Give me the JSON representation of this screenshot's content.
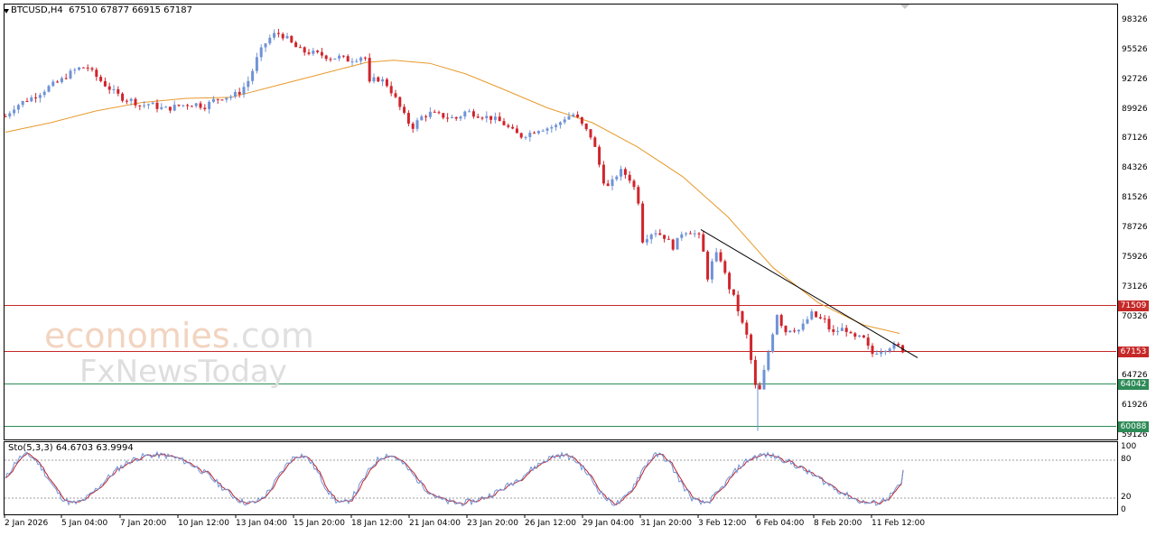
{
  "window": {
    "header": "BTCUSD,H4  67510 67877 66915 67187",
    "oscillator_header": "Sto(5,3,3) 64.6703 63.9994"
  },
  "watermark": {
    "line1_main": "economies",
    "line1_suffix": ".com",
    "line2": "FxNewsToday"
  },
  "colors": {
    "bull_candle": "#6f93d6",
    "bear_candle": "#d0242c",
    "moving_average": "#e89a2c",
    "red_level": "#c62828",
    "green_level": "#2e8b57",
    "trendline": "#000000",
    "stoch_main": "#6f93d6",
    "stoch_signal": "#c0222a"
  },
  "chart_data": [
    {
      "type": "candlestick",
      "title": "BTCUSD,H4",
      "timeframe": "H4",
      "last_bar": {
        "open": 67510,
        "high": 67877,
        "low": 66915,
        "close": 67187
      },
      "ylim": [
        58500,
        99000
      ],
      "y_ticks": [
        98326,
        95526,
        92726,
        89926,
        87126,
        84326,
        81526,
        78726,
        75926,
        73126,
        70326,
        64726,
        61926,
        59126
      ],
      "x_ticks": [
        "2 Jan 2026",
        "5 Jan 04:00",
        "7 Jan 20:00",
        "10 Jan 12:00",
        "13 Jan 04:00",
        "15 Jan 20:00",
        "18 Jan 12:00",
        "21 Jan 04:00",
        "23 Jan 20:00",
        "26 Jan 12:00",
        "29 Jan 04:00",
        "31 Jan 20:00",
        "3 Feb 12:00",
        "6 Feb 04:00",
        "8 Feb 20:00",
        "11 Feb 12:00"
      ],
      "closes_approx": [
        [
          0,
          89300
        ],
        [
          10,
          90200
        ],
        [
          20,
          90700
        ],
        [
          30,
          91100
        ],
        [
          40,
          91600
        ],
        [
          50,
          92200
        ],
        [
          60,
          92600
        ],
        [
          70,
          93300
        ],
        [
          80,
          93800
        ],
        [
          90,
          94000
        ],
        [
          100,
          93100
        ],
        [
          110,
          92300
        ],
        [
          120,
          91600
        ],
        [
          130,
          91000
        ],
        [
          140,
          90800
        ],
        [
          150,
          90300
        ],
        [
          160,
          90500
        ],
        [
          170,
          90100
        ],
        [
          180,
          90000
        ],
        [
          190,
          90300
        ],
        [
          200,
          90400
        ],
        [
          210,
          90500
        ],
        [
          220,
          90200
        ],
        [
          230,
          90800
        ],
        [
          240,
          91100
        ],
        [
          250,
          91200
        ],
        [
          260,
          91600
        ],
        [
          270,
          92800
        ],
        [
          280,
          95100
        ],
        [
          290,
          96500
        ],
        [
          300,
          97200
        ],
        [
          310,
          96800
        ],
        [
          320,
          95900
        ],
        [
          330,
          95400
        ],
        [
          340,
          95300
        ],
        [
          350,
          95100
        ],
        [
          360,
          94800
        ],
        [
          370,
          94900
        ],
        [
          380,
          94600
        ],
        [
          390,
          94800
        ],
        [
          398,
          95100
        ],
        [
          402,
          92300
        ],
        [
          410,
          92900
        ],
        [
          420,
          92600
        ],
        [
          430,
          91300
        ],
        [
          440,
          89600
        ],
        [
          450,
          88200
        ],
        [
          460,
          89200
        ],
        [
          470,
          89600
        ],
        [
          480,
          89400
        ],
        [
          490,
          89200
        ],
        [
          500,
          89100
        ],
        [
          510,
          89800
        ],
        [
          520,
          89500
        ],
        [
          530,
          89300
        ],
        [
          540,
          89100
        ],
        [
          550,
          88700
        ],
        [
          560,
          88000
        ],
        [
          570,
          87400
        ],
        [
          580,
          87700
        ],
        [
          590,
          88100
        ],
        [
          600,
          88200
        ],
        [
          610,
          88400
        ],
        [
          620,
          89200
        ],
        [
          630,
          89500
        ],
        [
          640,
          88300
        ],
        [
          650,
          87200
        ],
        [
          658,
          84600
        ],
        [
          665,
          82400
        ],
        [
          672,
          83100
        ],
        [
          680,
          84200
        ],
        [
          690,
          83600
        ],
        [
          700,
          81900
        ],
        [
          706,
          77300
        ],
        [
          712,
          78200
        ],
        [
          720,
          78400
        ],
        [
          730,
          77900
        ],
        [
          740,
          76900
        ],
        [
          750,
          78500
        ],
        [
          760,
          78400
        ],
        [
          770,
          77800
        ],
        [
          778,
          73900
        ],
        [
          785,
          76400
        ],
        [
          792,
          75800
        ],
        [
          800,
          73400
        ],
        [
          808,
          71900
        ],
        [
          815,
          69900
        ],
        [
          822,
          68300
        ],
        [
          828,
          64900
        ],
        [
          833,
          62600
        ],
        [
          840,
          65200
        ],
        [
          848,
          68300
        ],
        [
          855,
          70900
        ],
        [
          862,
          68900
        ],
        [
          870,
          69300
        ],
        [
          878,
          69100
        ],
        [
          885,
          69700
        ],
        [
          892,
          70700
        ],
        [
          900,
          70200
        ],
        [
          908,
          70000
        ],
        [
          915,
          68700
        ],
        [
          922,
          69100
        ],
        [
          930,
          69300
        ],
        [
          938,
          68300
        ],
        [
          945,
          68400
        ],
        [
          952,
          68200
        ],
        [
          958,
          66800
        ],
        [
          965,
          67100
        ],
        [
          972,
          67300
        ],
        [
          980,
          67600
        ],
        [
          988,
          67600
        ],
        [
          994,
          67187
        ]
      ],
      "moving_average": [
        [
          0,
          87800
        ],
        [
          50,
          88700
        ],
        [
          100,
          89800
        ],
        [
          150,
          90600
        ],
        [
          200,
          91000
        ],
        [
          250,
          91100
        ],
        [
          300,
          92200
        ],
        [
          350,
          93300
        ],
        [
          400,
          94400
        ],
        [
          430,
          94600
        ],
        [
          470,
          94300
        ],
        [
          510,
          93300
        ],
        [
          550,
          91900
        ],
        [
          600,
          90100
        ],
        [
          650,
          88700
        ],
        [
          700,
          86400
        ],
        [
          750,
          83600
        ],
        [
          800,
          79800
        ],
        [
          850,
          75000
        ],
        [
          900,
          71700
        ],
        [
          950,
          69600
        ],
        [
          990,
          68800
        ]
      ],
      "levels": [
        {
          "label": "71509",
          "value": 71509,
          "color": "#c62828"
        },
        {
          "label": "67153",
          "value": 67153,
          "color": "#c62828"
        },
        {
          "label": "64042",
          "value": 64042,
          "color": "#2e8b57"
        },
        {
          "label": "60088",
          "value": 60088,
          "color": "#2e8b57"
        }
      ],
      "trendline": {
        "from": [
          770,
          78600
        ],
        "to": [
          1010,
          66500
        ]
      }
    },
    {
      "type": "line",
      "title": "Sto(5,3,3) 64.6703 63.9994",
      "ylim": [
        0,
        100
      ],
      "y_ticks": [
        100,
        80,
        20,
        0
      ],
      "levels": [
        80,
        20
      ],
      "series": [
        {
          "name": "main",
          "last_value": 64.6703
        },
        {
          "name": "signal",
          "last_value": 63.9994
        }
      ]
    }
  ]
}
